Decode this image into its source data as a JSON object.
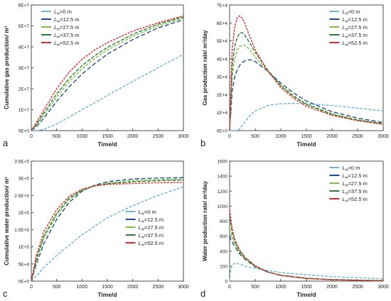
{
  "legend_series": [
    {
      "lw": "0 m",
      "color": "#6cb4df"
    },
    {
      "lw": "12.5 m",
      "color": "#1f4e8c"
    },
    {
      "lw": "27.5 m",
      "color": "#7cc242"
    },
    {
      "lw": "37.5 m",
      "color": "#2f7a3a"
    },
    {
      "lw": "52.5 m",
      "color": "#e5282a"
    }
  ],
  "legend_prefix": "L",
  "legend_subscript": "w",
  "chart_data": [
    {
      "panel_letter": "a",
      "type": "line",
      "xlabel": "Time/d",
      "ylabel": "Cumulative gas production/ m³",
      "xlim": [
        0,
        3000
      ],
      "ylim": [
        0,
        60000000
      ],
      "xticks": [
        "0",
        "500",
        "1000",
        "1500",
        "2000",
        "2500",
        "3000"
      ],
      "yticks": [
        "0E+0",
        "1E+7",
        "2E+7",
        "3E+7",
        "4E+7",
        "5E+7",
        "6E+7"
      ],
      "legend_position": "top-left",
      "x": [
        0,
        100,
        250,
        500,
        750,
        1000,
        1250,
        1500,
        2000,
        2500,
        3000
      ],
      "series": [
        {
          "name": "Lw=0 m",
          "values": [
            0,
            0,
            600000,
            3200000,
            6500000,
            10000000,
            13300000,
            16800000,
            23500000,
            30000000,
            36500000
          ]
        },
        {
          "name": "Lw=12.5 m",
          "values": [
            0,
            1800000,
            6000000,
            14000000,
            21000000,
            27000000,
            32000000,
            36500000,
            43500000,
            49000000,
            53000000
          ]
        },
        {
          "name": "Lw=27.5 m",
          "values": [
            0,
            2500000,
            7500000,
            16000000,
            23500000,
            29500000,
            34500000,
            38500000,
            45000000,
            50000000,
            53800000
          ]
        },
        {
          "name": "Lw=37.5 m",
          "values": [
            0,
            3000000,
            8500000,
            17500000,
            25000000,
            31000000,
            35800000,
            39700000,
            46000000,
            50800000,
            54300000
          ]
        },
        {
          "name": "Lw=52.5 m",
          "values": [
            0,
            3800000,
            10000000,
            20000000,
            28000000,
            34000000,
            38500000,
            42000000,
            47500000,
            51500000,
            54800000
          ]
        }
      ]
    },
    {
      "panel_letter": "b",
      "type": "line",
      "xlabel": "Time/d",
      "ylabel": "Gas production rate/ m³/day",
      "xlim": [
        0,
        3000
      ],
      "ylim": [
        0,
        70000
      ],
      "xticks": [
        "0",
        "500",
        "1000",
        "1500",
        "2000",
        "2500",
        "3000"
      ],
      "yticks": [
        "0E+0",
        "1E+4",
        "2E+4",
        "3E+4",
        "4E+4",
        "5E+4",
        "6E+4",
        "7E+4"
      ],
      "legend_position": "top-right",
      "x": [
        0,
        50,
        100,
        150,
        200,
        250,
        300,
        400,
        500,
        750,
        1000,
        1250,
        1500,
        2000,
        2500,
        3000
      ],
      "series": [
        {
          "name": "Lw=0 m",
          "values": [
            0,
            0,
            0,
            0,
            1000,
            3000,
            5000,
            8500,
            11000,
            14000,
            15000,
            15200,
            15000,
            14000,
            12500,
            11000
          ]
        },
        {
          "name": "Lw=12.5 m",
          "values": [
            0,
            22000,
            30000,
            34000,
            36500,
            38000,
            39000,
            39500,
            38500,
            33000,
            26500,
            21000,
            16500,
            10500,
            7000,
            4500
          ]
        },
        {
          "name": "Lw=27.5 m",
          "values": [
            0,
            30000,
            40000,
            45000,
            47000,
            47500,
            47500,
            45000,
            41000,
            33000,
            25500,
            19500,
            15000,
            9500,
            6000,
            4000
          ]
        },
        {
          "name": "Lw=37.5 m",
          "values": [
            0,
            36000,
            47000,
            52000,
            54500,
            54500,
            53000,
            48500,
            43500,
            33500,
            25000,
            19000,
            14500,
            9000,
            5800,
            3800
          ]
        },
        {
          "name": "Lw=52.5 m",
          "values": [
            0,
            45000,
            58000,
            63000,
            64000,
            62500,
            59500,
            52000,
            45000,
            33000,
            24000,
            18000,
            13500,
            8500,
            5500,
            3500
          ]
        }
      ]
    },
    {
      "panel_letter": "c",
      "type": "line",
      "xlabel": "Time/d",
      "ylabel": "Cumulative water production/ m³",
      "xlim": [
        0,
        3000
      ],
      "ylim": [
        0,
        350000
      ],
      "xticks": [
        "0",
        "500",
        "1000",
        "1500",
        "2000",
        "2500",
        "3000"
      ],
      "yticks": [
        "0E+0",
        "5E+4",
        "1E+5",
        "1.5E+5",
        "2E+5",
        "2.5E+5",
        "3E+5",
        "3.5E+5"
      ],
      "legend_position": "center-right",
      "x": [
        0,
        100,
        250,
        500,
        750,
        1000,
        1250,
        1500,
        2000,
        2500,
        3000
      ],
      "series": [
        {
          "name": "Lw=0 m",
          "values": [
            0,
            15000,
            40000,
            75000,
            105000,
            135000,
            160000,
            185000,
            220000,
            250000,
            275000
          ]
        },
        {
          "name": "Lw=12.5 m",
          "values": [
            0,
            50000,
            110000,
            180000,
            230000,
            262000,
            280000,
            290000,
            298000,
            301000,
            302000
          ]
        },
        {
          "name": "Lw=27.5 m",
          "values": [
            0,
            60000,
            125000,
            192000,
            238000,
            264000,
            278000,
            286000,
            293000,
            296000,
            298000
          ]
        },
        {
          "name": "Lw=37.5 m",
          "values": [
            0,
            65000,
            132000,
            198000,
            242000,
            266000,
            278000,
            284000,
            290000,
            293000,
            295000
          ]
        },
        {
          "name": "Lw=52.5 m",
          "values": [
            0,
            75000,
            145000,
            208000,
            248000,
            268000,
            278000,
            282000,
            285000,
            287000,
            288000
          ]
        }
      ]
    },
    {
      "panel_letter": "d",
      "type": "line",
      "xlabel": "Time/d",
      "ylabel": "Water production rate/ m³/day",
      "xlim": [
        0,
        3000
      ],
      "ylim": [
        0,
        1600
      ],
      "xticks": [
        "0",
        "500",
        "1000",
        "1500",
        "2000",
        "2500",
        "3000"
      ],
      "yticks": [
        "0",
        "200",
        "400",
        "600",
        "800",
        "1000",
        "1200",
        "1400",
        "1600"
      ],
      "legend_position": "top-right",
      "x": [
        0,
        20,
        50,
        100,
        150,
        200,
        300,
        500,
        750,
        1000,
        1500,
        2000,
        2500,
        3000
      ],
      "series": [
        {
          "name": "Lw=0 m",
          "values": [
            0,
            150,
            210,
            240,
            235,
            225,
            200,
            170,
            140,
            115,
            85,
            60,
            45,
            30
          ]
        },
        {
          "name": "Lw=12.5 m",
          "values": [
            600,
            560,
            520,
            460,
            410,
            360,
            290,
            190,
            120,
            80,
            40,
            22,
            13,
            8
          ]
        },
        {
          "name": "Lw=27.5 m",
          "values": [
            700,
            660,
            580,
            500,
            440,
            380,
            300,
            195,
            120,
            78,
            38,
            20,
            12,
            7
          ]
        },
        {
          "name": "Lw=37.5 m",
          "values": [
            850,
            780,
            650,
            530,
            460,
            400,
            310,
            200,
            120,
            76,
            36,
            19,
            11,
            6
          ]
        },
        {
          "name": "Lw=52.5 m",
          "values": [
            950,
            860,
            700,
            560,
            480,
            410,
            320,
            205,
            122,
            75,
            35,
            18,
            10,
            6
          ]
        }
      ]
    }
  ]
}
